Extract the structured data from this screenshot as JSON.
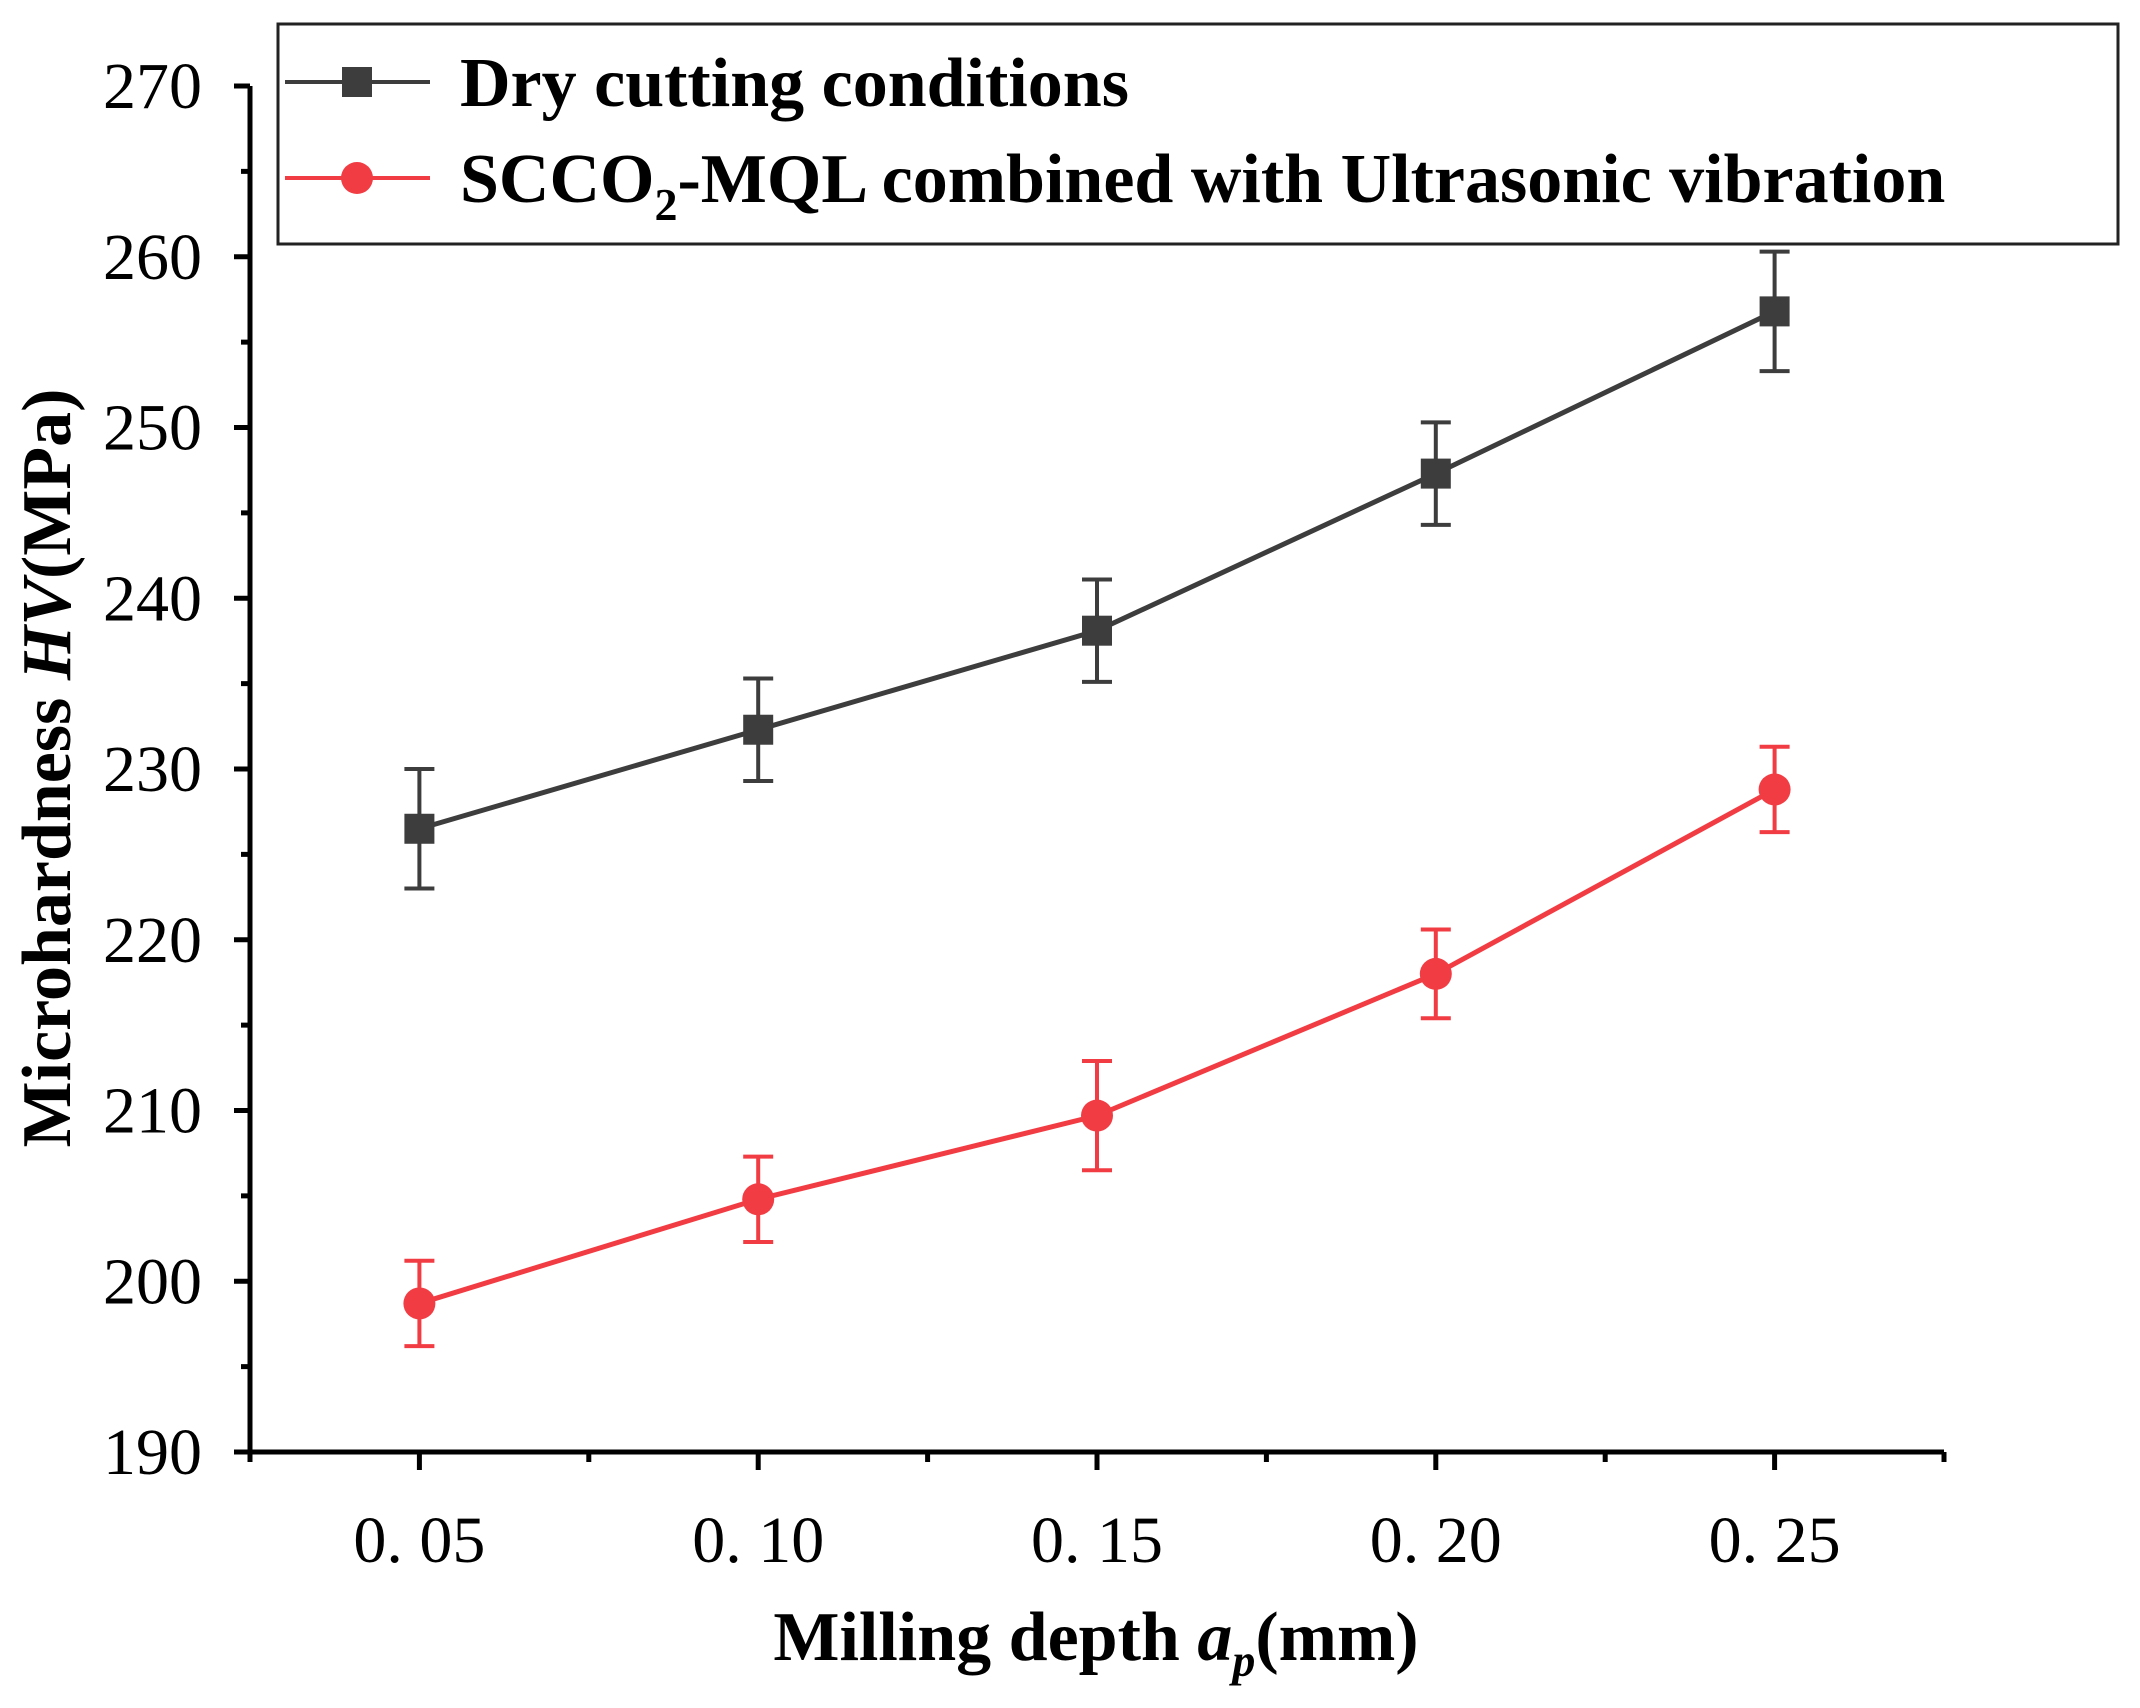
{
  "chart_data": {
    "type": "line",
    "title": "",
    "xlabel": {
      "prefix": "Milling depth ",
      "var": "a",
      "sub": "p",
      "unit": "(mm)"
    },
    "ylabel": {
      "prefix": "Microhardness ",
      "var": "HV",
      "unit": "(MPa)"
    },
    "x": [
      0.05,
      0.1,
      0.15,
      0.2,
      0.25
    ],
    "x_tick_labels": [
      "0. 05",
      "0. 10",
      "0. 15",
      "0. 20",
      "0. 25"
    ],
    "xlim": [
      0.025,
      0.275
    ],
    "ylim": [
      190,
      270
    ],
    "y_ticks": [
      190,
      200,
      210,
      220,
      230,
      240,
      250,
      260,
      270
    ],
    "legend_position": "top-right",
    "series": [
      {
        "name": "Dry cutting conditions",
        "legend": {
          "pre": "Dry cutting conditions",
          "sub": "",
          "post": ""
        },
        "color": "#3d3d3d",
        "marker": "square",
        "values": [
          226.5,
          232.3,
          238.1,
          247.3,
          256.8
        ],
        "errors": [
          3.5,
          3.0,
          3.0,
          3.0,
          3.5
        ]
      },
      {
        "name": "SCCO2-MQL combined with Ultrasonic vibration",
        "legend": {
          "pre": "SCCO",
          "sub": "2",
          "post": "-MQL combined with Ultrasonic vibration"
        },
        "color": "#f23c43",
        "marker": "circle",
        "values": [
          198.7,
          204.8,
          209.7,
          218.0,
          228.8
        ],
        "errors": [
          2.5,
          2.5,
          3.2,
          2.6,
          2.5
        ]
      }
    ]
  }
}
